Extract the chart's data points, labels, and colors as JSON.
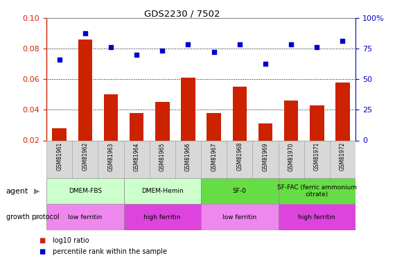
{
  "title": "GDS2230 / 7502",
  "samples": [
    "GSM81961",
    "GSM81962",
    "GSM81963",
    "GSM81964",
    "GSM81965",
    "GSM81966",
    "GSM81967",
    "GSM81968",
    "GSM81969",
    "GSM81970",
    "GSM81971",
    "GSM81972"
  ],
  "log10_ratio": [
    0.028,
    0.086,
    0.05,
    0.038,
    0.045,
    0.061,
    0.038,
    0.055,
    0.031,
    0.046,
    0.043,
    0.058
  ],
  "percentile_rank": [
    66.25,
    87.5,
    76.25,
    70.0,
    73.75,
    78.75,
    72.5,
    78.75,
    62.5,
    78.75,
    76.25,
    81.25
  ],
  "bar_color": "#cc2200",
  "dot_color": "#0000cc",
  "left_ylim": [
    0.02,
    0.1
  ],
  "left_yticks": [
    0.02,
    0.04,
    0.06,
    0.08,
    0.1
  ],
  "right_ylim": [
    0,
    100
  ],
  "right_yticks": [
    0,
    25,
    50,
    75,
    100
  ],
  "right_yticklabels": [
    "0",
    "25",
    "50",
    "75",
    "100%"
  ],
  "agent_groups": [
    {
      "label": "DMEM-FBS",
      "start": 0,
      "end": 2,
      "color": "#ccffcc"
    },
    {
      "label": "DMEM-Hemin",
      "start": 3,
      "end": 5,
      "color": "#ccffcc"
    },
    {
      "label": "SF-0",
      "start": 6,
      "end": 8,
      "color": "#66dd44"
    },
    {
      "label": "SF-FAC (ferric ammonium\ncitrate)",
      "start": 9,
      "end": 11,
      "color": "#66dd44"
    }
  ],
  "growth_groups": [
    {
      "label": "low ferritin",
      "start": 0,
      "end": 2,
      "color": "#ee88ee"
    },
    {
      "label": "high ferritin",
      "start": 3,
      "end": 5,
      "color": "#dd44dd"
    },
    {
      "label": "low ferritin",
      "start": 6,
      "end": 8,
      "color": "#ee88ee"
    },
    {
      "label": "high ferritin",
      "start": 9,
      "end": 11,
      "color": "#dd44dd"
    }
  ],
  "legend_label_bar": "log10 ratio",
  "legend_label_dot": "percentile rank within the sample",
  "bg_color": "#ffffff",
  "grid_color": "#000000",
  "sample_bg": "#d8d8d8",
  "left_axis_color": "#cc2200",
  "right_axis_color": "#0000cc"
}
